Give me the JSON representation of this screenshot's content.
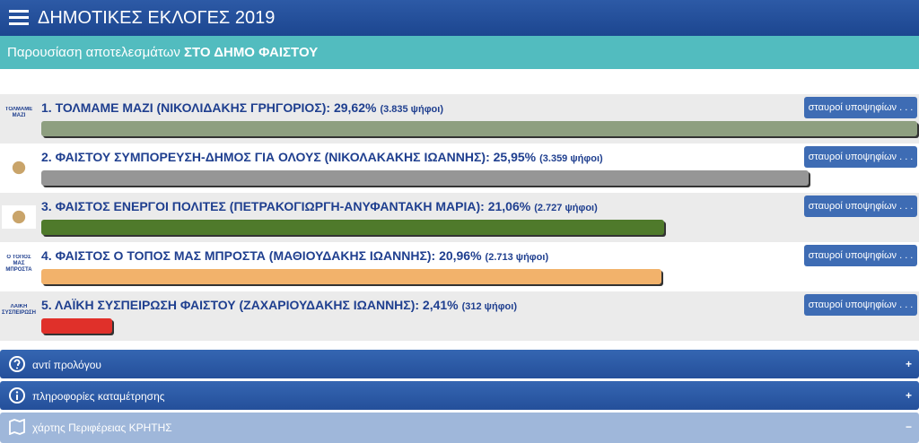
{
  "header": {
    "title": "ΔΗΜΟΤΙΚΕΣ ΕΚΛΟΓΕΣ 2019"
  },
  "subheader": {
    "text": "Παρουσίαση αποτελεσμάτων",
    "bold": "ΣΤΟ ΔΗΜΟ ΦΑΙΣΤΟΥ"
  },
  "parties": [
    {
      "name": "1. ΤΟΛΜΑΜΕ ΜΑΖΙ (ΝΙΚΟΛΙΔΑΚΗΣ ΓΡΗΓΟΡΙΟΣ):",
      "value": 29.62,
      "value_label": "29,62%",
      "votes": "(3.835 ψήφοι)",
      "button": "σταυροί υποψηφίων . . .",
      "color": "#8e9f80",
      "logo": "ΤΟΛΜΑΜΕ ΜΑΖΙ"
    },
    {
      "name": "2. ΦΑΙΣΤΟΥ ΣΥΜΠΟΡΕΥΣΗ-ΔΗΜΟΣ ΓΙΑ ΟΛΟΥΣ (ΝΙΚΟΛΑΚΑΚΗΣ ΙΩΑΝΝΗΣ):",
      "value": 25.95,
      "value_label": "25,95%",
      "votes": "(3.359 ψήφοι)",
      "button": "σταυροί υποψηφίων . . .",
      "color": "#969696"
    },
    {
      "name": "3. ΦΑΙΣΤΟΣ ΕΝΕΡΓΟΙ ΠΟΛΙΤΕΣ (ΠΕΤΡΑΚΟΓΙΩΡΓΗ-ΑΝΥΦΑΝΤΑΚΗ ΜΑΡΙΑ):",
      "value": 21.06,
      "value_label": "21,06%",
      "votes": "(2.727 ψήφοι)",
      "button": "σταυροί υποψηφίων . . .",
      "color": "#4f7a2b"
    },
    {
      "name": "4. ΦΑΙΣΤΟΣ Ο ΤΟΠΟΣ ΜΑΣ ΜΠΡΟΣΤΑ (ΜΑΘΙΟΥΔΑΚΗΣ ΙΩΑΝΝΗΣ):",
      "value": 20.96,
      "value_label": "20,96%",
      "votes": "(2.713 ψήφοι)",
      "button": "σταυροί υποψηφίων . . .",
      "color": "#f2b26b",
      "logo": "Ο ΤΟΠΟΣ ΜΑΣ ΜΠΡΟΣΤΑ"
    },
    {
      "name": "5. ΛΑΪΚΗ ΣΥΣΠΕΙΡΩΣΗ ΦΑΙΣΤΟΥ (ΖΑΧΑΡΙΟΥΔΑΚΗΣ ΙΩΑΝΝΗΣ):",
      "value": 2.41,
      "value_label": "2,41%",
      "votes": "(312 ψήφοι)",
      "button": "σταυροί υποψηφίων . . .",
      "color": "#e0302a",
      "logo": "ΛΑΪΚΗ ΣΥΣΠΕΙΡΩΣΗ"
    }
  ],
  "accordions": [
    {
      "label": "αντί προλόγου",
      "toggle": "+"
    },
    {
      "label": "πληροφορίες καταμέτρησης",
      "toggle": "+"
    },
    {
      "label": "χάρτης Περιφέρειας ΚΡΗΤΗΣ",
      "toggle": "−"
    }
  ]
}
